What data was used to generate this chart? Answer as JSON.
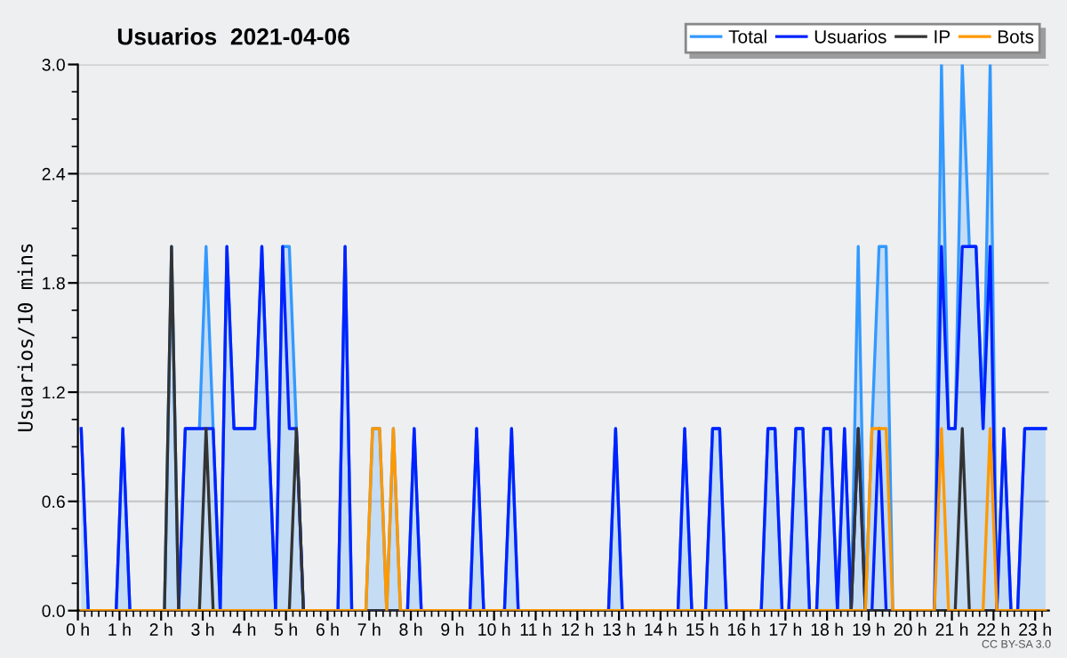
{
  "chart_data": {
    "type": "line",
    "title": "Usuarios  2021-04-06",
    "ylabel": "Usuarios/10 mins",
    "annotations": [
      "CC BY-SA 3.0"
    ],
    "x": [
      0.08,
      0.25,
      0.42,
      0.58,
      0.75,
      0.92,
      1.08,
      1.25,
      1.42,
      1.58,
      1.75,
      1.92,
      2.08,
      2.25,
      2.42,
      2.58,
      2.75,
      2.92,
      3.08,
      3.25,
      3.42,
      3.58,
      3.75,
      3.92,
      4.08,
      4.25,
      4.42,
      4.58,
      4.75,
      4.92,
      5.08,
      5.25,
      5.42,
      5.58,
      5.75,
      5.92,
      6.08,
      6.25,
      6.42,
      6.58,
      6.75,
      6.92,
      7.08,
      7.25,
      7.42,
      7.58,
      7.75,
      7.92,
      8.08,
      8.25,
      8.42,
      8.58,
      8.75,
      8.92,
      9.08,
      9.25,
      9.42,
      9.58,
      9.75,
      9.92,
      10.08,
      10.25,
      10.42,
      10.58,
      10.75,
      10.92,
      11.08,
      11.25,
      11.42,
      11.58,
      11.75,
      11.92,
      12.08,
      12.25,
      12.42,
      12.58,
      12.75,
      12.92,
      13.08,
      13.25,
      13.42,
      13.58,
      13.75,
      13.92,
      14.08,
      14.25,
      14.42,
      14.58,
      14.75,
      14.92,
      15.08,
      15.25,
      15.42,
      15.58,
      15.75,
      15.92,
      16.08,
      16.25,
      16.42,
      16.58,
      16.75,
      16.92,
      17.08,
      17.25,
      17.42,
      17.58,
      17.75,
      17.92,
      18.08,
      18.25,
      18.42,
      18.58,
      18.75,
      18.92,
      19.08,
      19.25,
      19.42,
      19.58,
      19.75,
      19.92,
      20.08,
      20.25,
      20.42,
      20.58,
      20.75,
      20.92,
      21.08,
      21.25,
      21.42,
      21.58,
      21.75,
      21.92,
      22.08,
      22.25,
      22.42,
      22.58,
      22.75,
      22.92,
      23.08,
      23.25
    ],
    "series": [
      {
        "name": "Total",
        "type": "area",
        "color": "#3399ff",
        "values": [
          1,
          0,
          0,
          0,
          0,
          0,
          1,
          0,
          0,
          0,
          0,
          0,
          0,
          2,
          0,
          1,
          1,
          1,
          2,
          1,
          0,
          2,
          1,
          1,
          1,
          1,
          2,
          1,
          0,
          2,
          2,
          1,
          0,
          0,
          0,
          0,
          0,
          0,
          2,
          0,
          0,
          0,
          1,
          1,
          0,
          1,
          0,
          0,
          1,
          0,
          0,
          0,
          0,
          0,
          0,
          0,
          0,
          1,
          0,
          0,
          0,
          0,
          1,
          0,
          0,
          0,
          0,
          0,
          0,
          0,
          0,
          0,
          0,
          0,
          0,
          0,
          0,
          1,
          0,
          0,
          0,
          0,
          0,
          0,
          0,
          0,
          0,
          1,
          0,
          0,
          0,
          1,
          1,
          0,
          0,
          0,
          0,
          0,
          0,
          1,
          1,
          0,
          0,
          1,
          1,
          0,
          0,
          1,
          1,
          0,
          1,
          0,
          2,
          0,
          1,
          2,
          2,
          0,
          0,
          0,
          0,
          0,
          0,
          0,
          3,
          1,
          1,
          3,
          2,
          2,
          1,
          3,
          0,
          1,
          0,
          0,
          1,
          1,
          1,
          1
        ]
      },
      {
        "name": "Usuarios",
        "type": "line",
        "color": "#0022ff",
        "values": [
          1,
          0,
          0,
          0,
          0,
          0,
          1,
          0,
          0,
          0,
          0,
          0,
          0,
          0,
          0,
          1,
          1,
          1,
          1,
          1,
          0,
          2,
          1,
          1,
          1,
          1,
          2,
          1,
          0,
          2,
          1,
          1,
          0,
          0,
          0,
          0,
          0,
          0,
          2,
          0,
          0,
          0,
          0,
          0,
          0,
          0,
          0,
          0,
          1,
          0,
          0,
          0,
          0,
          0,
          0,
          0,
          0,
          1,
          0,
          0,
          0,
          0,
          1,
          0,
          0,
          0,
          0,
          0,
          0,
          0,
          0,
          0,
          0,
          0,
          0,
          0,
          0,
          1,
          0,
          0,
          0,
          0,
          0,
          0,
          0,
          0,
          0,
          1,
          0,
          0,
          0,
          1,
          1,
          0,
          0,
          0,
          0,
          0,
          0,
          1,
          1,
          0,
          0,
          1,
          1,
          0,
          0,
          1,
          1,
          0,
          1,
          0,
          1,
          0,
          0,
          1,
          0,
          0,
          0,
          0,
          0,
          0,
          0,
          0,
          2,
          1,
          1,
          2,
          2,
          2,
          1,
          2,
          0,
          1,
          0,
          0,
          1,
          1,
          1,
          1
        ]
      },
      {
        "name": "IP",
        "type": "line",
        "color": "#333333",
        "values": [
          0,
          0,
          0,
          0,
          0,
          0,
          0,
          0,
          0,
          0,
          0,
          0,
          0,
          2,
          0,
          0,
          0,
          0,
          1,
          0,
          0,
          0,
          0,
          0,
          0,
          0,
          0,
          0,
          0,
          0,
          0,
          1,
          0,
          0,
          0,
          0,
          0,
          0,
          0,
          0,
          0,
          0,
          0,
          0,
          0,
          0,
          0,
          0,
          0,
          0,
          0,
          0,
          0,
          0,
          0,
          0,
          0,
          0,
          0,
          0,
          0,
          0,
          0,
          0,
          0,
          0,
          0,
          0,
          0,
          0,
          0,
          0,
          0,
          0,
          0,
          0,
          0,
          0,
          0,
          0,
          0,
          0,
          0,
          0,
          0,
          0,
          0,
          0,
          0,
          0,
          0,
          0,
          0,
          0,
          0,
          0,
          0,
          0,
          0,
          0,
          0,
          0,
          0,
          0,
          0,
          0,
          0,
          0,
          0,
          0,
          0,
          0,
          1,
          0,
          0,
          0,
          0,
          0,
          0,
          0,
          0,
          0,
          0,
          0,
          0,
          0,
          0,
          1,
          0,
          0,
          0,
          0,
          0,
          0,
          0,
          0,
          0,
          0,
          0,
          0
        ]
      },
      {
        "name": "Bots",
        "type": "line",
        "color": "#ff9900",
        "values": [
          0,
          0,
          0,
          0,
          0,
          0,
          0,
          0,
          0,
          0,
          0,
          0,
          0,
          0,
          0,
          0,
          0,
          0,
          0,
          0,
          0,
          0,
          0,
          0,
          0,
          0,
          0,
          0,
          0,
          0,
          0,
          0,
          0,
          0,
          0,
          0,
          0,
          0,
          0,
          0,
          0,
          0,
          1,
          1,
          0,
          1,
          0,
          0,
          0,
          0,
          0,
          0,
          0,
          0,
          0,
          0,
          0,
          0,
          0,
          0,
          0,
          0,
          0,
          0,
          0,
          0,
          0,
          0,
          0,
          0,
          0,
          0,
          0,
          0,
          0,
          0,
          0,
          0,
          0,
          0,
          0,
          0,
          0,
          0,
          0,
          0,
          0,
          0,
          0,
          0,
          0,
          0,
          0,
          0,
          0,
          0,
          0,
          0,
          0,
          0,
          0,
          0,
          0,
          0,
          0,
          0,
          0,
          0,
          0,
          0,
          0,
          0,
          0,
          0,
          1,
          1,
          1,
          0,
          0,
          0,
          0,
          0,
          0,
          0,
          1,
          0,
          0,
          0,
          0,
          0,
          0,
          1,
          0,
          0,
          0,
          0,
          0,
          0,
          0,
          0
        ]
      }
    ],
    "xlim": [
      0,
      23.33
    ],
    "xticks": [
      {
        "value": 0,
        "label": "0 h"
      },
      {
        "value": 1,
        "label": "1 h"
      },
      {
        "value": 2,
        "label": "2 h"
      },
      {
        "value": 3,
        "label": "3 h"
      },
      {
        "value": 4,
        "label": "4 h"
      },
      {
        "value": 5,
        "label": "5 h"
      },
      {
        "value": 6,
        "label": "6 h"
      },
      {
        "value": 7,
        "label": "7 h"
      },
      {
        "value": 8,
        "label": "8 h"
      },
      {
        "value": 9,
        "label": "9 h"
      },
      {
        "value": 10,
        "label": "10 h"
      },
      {
        "value": 11,
        "label": "11 h"
      },
      {
        "value": 12,
        "label": "12 h"
      },
      {
        "value": 13,
        "label": "13 h"
      },
      {
        "value": 14,
        "label": "14 h"
      },
      {
        "value": 15,
        "label": "15 h"
      },
      {
        "value": 16,
        "label": "16 h"
      },
      {
        "value": 17,
        "label": "17 h"
      },
      {
        "value": 18,
        "label": "18 h"
      },
      {
        "value": 19,
        "label": "19 h"
      },
      {
        "value": 20,
        "label": "20 h"
      },
      {
        "value": 21,
        "label": "21 h"
      },
      {
        "value": 22,
        "label": "22 h"
      },
      {
        "value": 23,
        "label": "23 h"
      }
    ],
    "ylim": [
      0,
      3
    ],
    "yticks": [
      {
        "value": 0,
        "label": "0.0"
      },
      {
        "value": 0.6,
        "label": "0.6"
      },
      {
        "value": 1.2,
        "label": "1.2"
      },
      {
        "value": 1.8,
        "label": "1.8"
      },
      {
        "value": 2.4,
        "label": "2.4"
      },
      {
        "value": 3,
        "label": "3.0"
      }
    ],
    "grid": "y",
    "legend": "top right",
    "marker": "none",
    "line_style": "solid"
  }
}
